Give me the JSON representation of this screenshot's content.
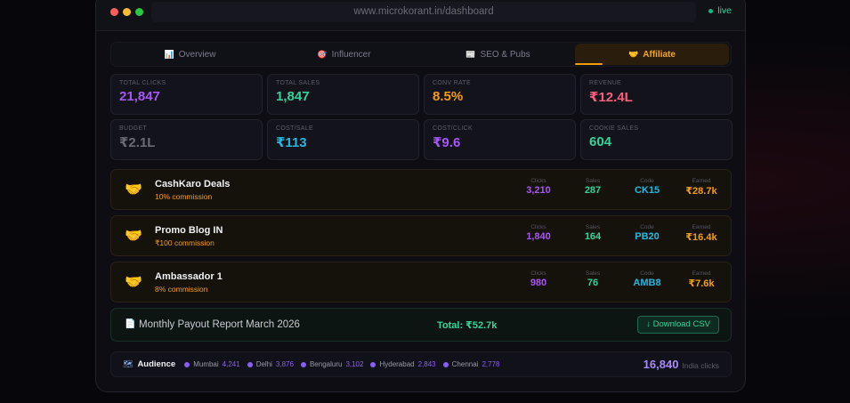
{
  "browser": {
    "url": "www.microkorant.in/dashboard",
    "status": "live"
  },
  "tabs": [
    {
      "label": "Overview",
      "icon": "📊"
    },
    {
      "label": "Influencer",
      "icon": "🎯"
    },
    {
      "label": "SEO & Pubs",
      "icon": "📰"
    },
    {
      "label": "Affiliate",
      "icon": "🤝",
      "active": true
    }
  ],
  "stats": [
    {
      "label": "TOTAL CLICKS",
      "value": "21,847",
      "color": "#a855f7"
    },
    {
      "label": "TOTAL SALES",
      "value": "1,847",
      "color": "#34d399"
    },
    {
      "label": "CONV RATE",
      "value": "8.5%",
      "color": "#f59e0b"
    },
    {
      "label": "REVENUE",
      "value": "₹12.4L",
      "color": "#fb5d7c"
    },
    {
      "label": "BUDGET",
      "value": "₹2.1L",
      "color": "#6b6b78"
    },
    {
      "label": "COST/SALE",
      "value": "₹113",
      "color": "#22b8e0"
    },
    {
      "label": "COST/CLICK",
      "value": "₹9.6",
      "color": "#a855f7"
    },
    {
      "label": "COOKIE SALES",
      "value": "604",
      "color": "#34d399"
    }
  ],
  "partners": [
    {
      "name": "CashKaro Deals",
      "commission": "10% commission",
      "clicks": "3,210",
      "sales": "287",
      "code": "CK15",
      "earned": "₹28.7k"
    },
    {
      "name": "Promo Blog IN",
      "commission": "₹100 commission",
      "clicks": "1,840",
      "sales": "164",
      "code": "PB20",
      "earned": "₹16.4k"
    },
    {
      "name": "Ambassador 1",
      "commission": "8% commission",
      "clicks": "980",
      "sales": "76",
      "code": "AMB8",
      "earned": "₹7.6k"
    }
  ],
  "partner_labels": {
    "clicks": "Clicks",
    "sales": "Sales",
    "code": "Code",
    "earned": "Earned"
  },
  "payout": {
    "title": "Monthly Payout Report March 2026",
    "total": "Total: ₹52.7k",
    "button": "↓ Download CSV"
  },
  "audience": {
    "title": "Audience",
    "cities": [
      {
        "name": "Mumbai",
        "value": "4,241"
      },
      {
        "name": "Delhi",
        "value": "3,876"
      },
      {
        "name": "Bengaluru",
        "value": "3,102"
      },
      {
        "name": "Hyderabad",
        "value": "2,843"
      },
      {
        "name": "Chennai",
        "value": "2,778"
      }
    ],
    "total": "16,840",
    "total_label": "India clicks"
  },
  "colors": {
    "clicks": "#a855f7",
    "sales": "#34d399",
    "code": "#22b8e0",
    "earned": "#f59e0b"
  }
}
